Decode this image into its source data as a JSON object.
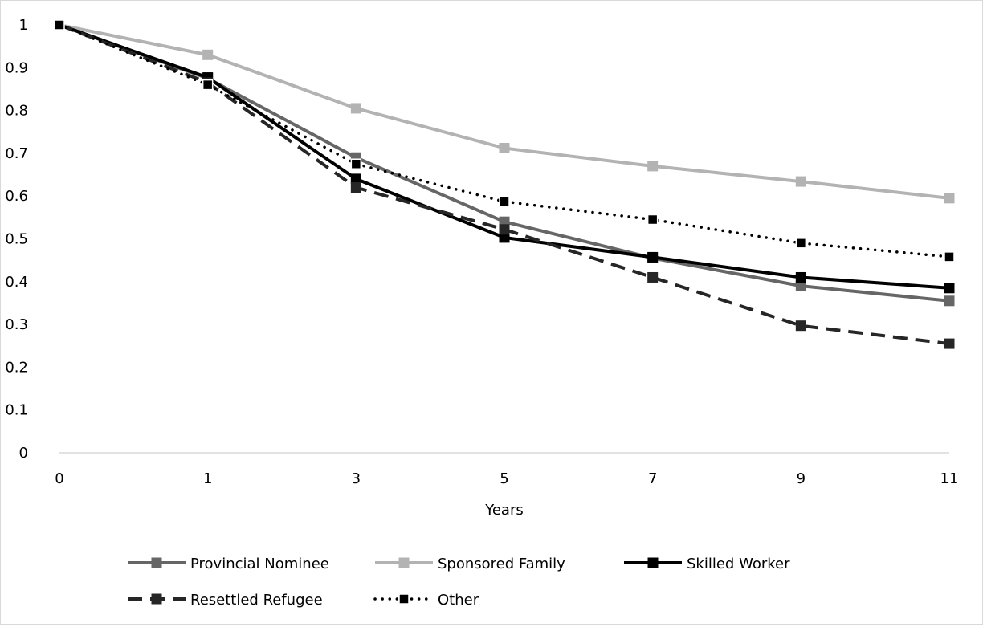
{
  "chart_data": {
    "type": "line",
    "title": "",
    "xlabel": "Years",
    "ylabel": "",
    "categories": [
      "0",
      "1",
      "3",
      "5",
      "7",
      "9",
      "11"
    ],
    "y_ticks": [
      "0",
      "0.1",
      "0.2",
      "0.3",
      "0.4",
      "0.5",
      "0.6",
      "0.7",
      "0.8",
      "0.9",
      "1"
    ],
    "ylim": [
      0,
      1
    ],
    "grid": false,
    "legend_position": "bottom",
    "series": [
      {
        "name": "Provincial Nominee",
        "values": [
          1,
          0.875,
          0.69,
          0.54,
          0.455,
          0.39,
          0.355
        ],
        "color": "#666666",
        "style": "solid"
      },
      {
        "name": "Sponsored Family",
        "values": [
          1,
          0.93,
          0.805,
          0.712,
          0.67,
          0.634,
          0.595
        ],
        "color": "#b3b3b3",
        "style": "solid"
      },
      {
        "name": "Skilled Worker",
        "values": [
          1,
          0.877,
          0.64,
          0.503,
          0.457,
          0.41,
          0.385
        ],
        "color": "#000000",
        "style": "solid"
      },
      {
        "name": "Resettled Refugee",
        "values": [
          1,
          0.865,
          0.62,
          0.522,
          0.41,
          0.297,
          0.255
        ],
        "color": "#262626",
        "style": "dashed"
      },
      {
        "name": "Other",
        "values": [
          1,
          0.86,
          0.675,
          0.587,
          0.545,
          0.49,
          0.458
        ],
        "color": "#000000",
        "style": "dotted"
      }
    ]
  }
}
